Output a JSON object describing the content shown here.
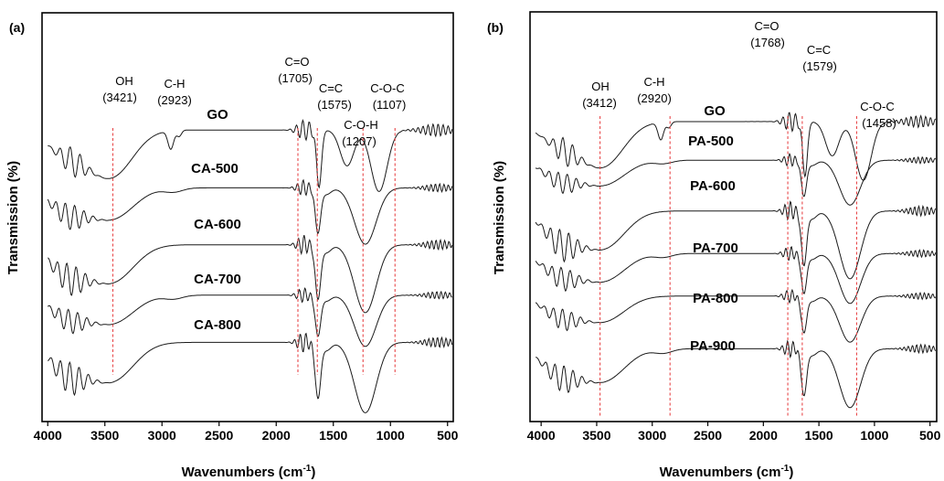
{
  "chart_data": [
    {
      "type": "line",
      "panel_label": "(a)",
      "xlabel": "Wavenumbers (cm",
      "xlabel_sup": "-1",
      "xlabel_close": ")",
      "ylabel": "Transmission (%)",
      "xlim": [
        4050,
        450
      ],
      "x_reversed": true,
      "xticks": [
        4000,
        3500,
        3000,
        2500,
        2000,
        1500,
        1000,
        500
      ],
      "y_ticks_shown": false,
      "grid": false,
      "legend": "none",
      "series": [
        {
          "name": "GO",
          "offset": 0
        },
        {
          "name": "CA-500",
          "offset": 1
        },
        {
          "name": "CA-600",
          "offset": 2
        },
        {
          "name": "CA-700",
          "offset": 3
        },
        {
          "name": "CA-800",
          "offset": 4
        }
      ],
      "band_annotations": [
        {
          "group": "OH",
          "value": "(3421)"
        },
        {
          "group": "C-H",
          "value": "(2923)"
        },
        {
          "group": "C=O",
          "value": "(1705)"
        },
        {
          "group": "C=C",
          "value": "(1575)"
        },
        {
          "group": "C-O-H",
          "value": "(1207)"
        },
        {
          "group": "C-O-C",
          "value": "(1107)"
        }
      ],
      "reference_lines_cm": [
        3430,
        1810,
        1640,
        1240,
        960
      ],
      "reference_line_color": "#e8484a"
    },
    {
      "type": "line",
      "panel_label": "(b)",
      "xlabel": "Wavenumbers (cm",
      "xlabel_sup": "-1",
      "xlabel_close": ")",
      "ylabel": "Transmission (%)",
      "xlim": [
        4100,
        440
      ],
      "x_reversed": true,
      "xticks": [
        4000,
        3500,
        3000,
        2500,
        2000,
        1500,
        1000,
        500
      ],
      "y_ticks_shown": false,
      "grid": false,
      "legend": "none",
      "series": [
        {
          "name": "GO",
          "offset": 0
        },
        {
          "name": "PA-500",
          "offset": 1
        },
        {
          "name": "PA-600",
          "offset": 2
        },
        {
          "name": "PA-700",
          "offset": 3
        },
        {
          "name": "PA-800",
          "offset": 4
        },
        {
          "name": "PA-900",
          "offset": 5
        }
      ],
      "band_annotations": [
        {
          "group": "OH",
          "value": "(3412)"
        },
        {
          "group": "C-H",
          "value": "(2920)"
        },
        {
          "group": "C=O",
          "value": "(1768)"
        },
        {
          "group": "C=C",
          "value": "(1579)"
        },
        {
          "group": "C-O-C",
          "value": "(1458)"
        }
      ],
      "reference_lines_cm": [
        3470,
        2840,
        1780,
        1650,
        1160
      ],
      "reference_line_color": "#e8484a"
    }
  ]
}
